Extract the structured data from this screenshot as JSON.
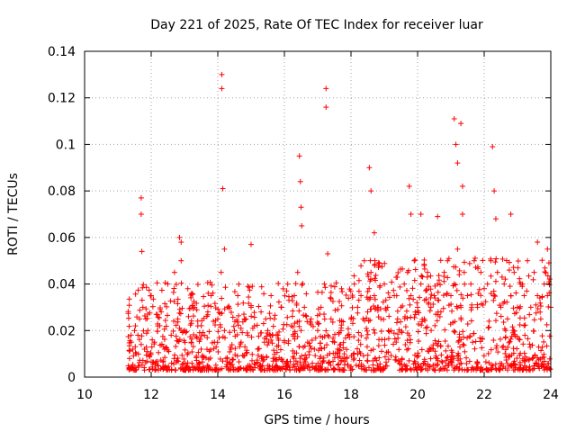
{
  "chart_data": {
    "type": "scatter",
    "title": "Day 221 of 2025, Rate Of TEC Index for receiver luar",
    "xlabel": "GPS time / hours",
    "ylabel": "ROTI / TECUs",
    "xlim": [
      10,
      24
    ],
    "ylim": [
      0,
      0.14
    ],
    "x_ticks": [
      10,
      12,
      14,
      16,
      18,
      20,
      22,
      24
    ],
    "x_tick_labels": [
      "10",
      "12",
      "14",
      "16",
      "18",
      "20",
      "22",
      "24"
    ],
    "y_ticks": [
      0,
      0.02,
      0.04,
      0.06,
      0.08,
      0.1,
      0.12,
      0.14
    ],
    "y_tick_labels": [
      "0",
      "0.02",
      "0.04",
      "0.06",
      "0.08",
      "0.1",
      "0.12",
      "0.14"
    ],
    "grid": true,
    "marker": "plus",
    "color": "#ff0000",
    "series": [
      {
        "name": "ROTI",
        "x": [
          11.35,
          11.4,
          11.45,
          11.5,
          11.55,
          11.6,
          11.65,
          11.7,
          11.75,
          11.8,
          11.9,
          12.0,
          12.1,
          12.2,
          12.3,
          12.4,
          12.5,
          12.6,
          12.7,
          12.8,
          12.9,
          13.0,
          13.1,
          13.2,
          13.3,
          13.4,
          13.5,
          13.6,
          13.7,
          13.8,
          13.9,
          14.0,
          14.1,
          14.2,
          14.3,
          14.4,
          14.5,
          14.6,
          14.7,
          14.8,
          14.9,
          15.0,
          15.1,
          15.2,
          15.3,
          15.4,
          15.5,
          15.6,
          15.7,
          15.8,
          15.9,
          16.0,
          16.1,
          16.2,
          16.3,
          16.4,
          16.5,
          16.6,
          16.7,
          16.8,
          16.9,
          17.0,
          17.1,
          17.2,
          17.3,
          17.4,
          17.5,
          17.6,
          17.7,
          17.8,
          17.9,
          18.0,
          18.1,
          18.2,
          18.3,
          18.4,
          18.5,
          18.6,
          18.7,
          18.8,
          18.9,
          19.0,
          19.1,
          19.2,
          19.3,
          19.4,
          19.5,
          19.6,
          19.7,
          19.8,
          19.9,
          20.0,
          20.1,
          20.2,
          20.3,
          20.4,
          20.5,
          20.6,
          20.7,
          20.8,
          20.9,
          21.0,
          21.1,
          21.2,
          21.3,
          21.4,
          21.5,
          21.6,
          21.7,
          21.8,
          21.9,
          22.0,
          22.1,
          22.2,
          22.3,
          22.4,
          22.5,
          22.6,
          22.7,
          22.8,
          22.9,
          23.0,
          23.1,
          23.2,
          23.3,
          23.4,
          23.5,
          23.6,
          23.7,
          23.8,
          23.9,
          24.0,
          11.7,
          11.7,
          11.72,
          12.85,
          12.9,
          14.12,
          14.12,
          14.15,
          14.2,
          15.0,
          16.45,
          16.48,
          16.5,
          16.52,
          17.25,
          17.25,
          17.3,
          18.55,
          18.6,
          18.7,
          19.75,
          19.8,
          20.1,
          20.6,
          21.1,
          21.15,
          21.2,
          21.3,
          21.35,
          21.35,
          22.25,
          22.3,
          22.35,
          22.8,
          23.6,
          23.9
        ],
        "y": [
          0.008,
          0.015,
          0.012,
          0.02,
          0.01,
          0.018,
          0.025,
          0.014,
          0.03,
          0.012,
          0.02,
          0.035,
          0.015,
          0.022,
          0.028,
          0.012,
          0.04,
          0.018,
          0.045,
          0.025,
          0.05,
          0.02,
          0.038,
          0.015,
          0.03,
          0.022,
          0.012,
          0.018,
          0.028,
          0.035,
          0.015,
          0.025,
          0.045,
          0.02,
          0.03,
          0.012,
          0.02,
          0.035,
          0.015,
          0.025,
          0.018,
          0.03,
          0.022,
          0.012,
          0.028,
          0.015,
          0.02,
          0.035,
          0.025,
          0.018,
          0.03,
          0.015,
          0.04,
          0.022,
          0.035,
          0.045,
          0.02,
          0.03,
          0.015,
          0.025,
          0.012,
          0.02,
          0.03,
          0.04,
          0.018,
          0.025,
          0.015,
          0.012,
          0.02,
          0.01,
          0.018,
          0.025,
          0.04,
          0.03,
          0.035,
          0.05,
          0.028,
          0.045,
          0.035,
          0.03,
          0.025,
          0.04,
          0.03,
          0.02,
          0.035,
          0.025,
          0.03,
          0.04,
          0.045,
          0.035,
          0.05,
          0.03,
          0.04,
          0.025,
          0.045,
          0.03,
          0.035,
          0.04,
          0.028,
          0.045,
          0.05,
          0.035,
          0.04,
          0.055,
          0.03,
          0.045,
          0.035,
          0.04,
          0.05,
          0.03,
          0.045,
          0.038,
          0.04,
          0.05,
          0.035,
          0.045,
          0.03,
          0.04,
          0.025,
          0.035,
          0.045,
          0.03,
          0.04,
          0.035,
          0.05,
          0.03,
          0.045,
          0.035,
          0.025,
          0.04,
          0.035,
          0.03,
          0.077,
          0.07,
          0.054,
          0.06,
          0.058,
          0.13,
          0.124,
          0.081,
          0.055,
          0.057,
          0.095,
          0.084,
          0.073,
          0.065,
          0.124,
          0.116,
          0.053,
          0.09,
          0.08,
          0.062,
          0.082,
          0.07,
          0.07,
          0.069,
          0.111,
          0.1,
          0.092,
          0.109,
          0.082,
          0.07,
          0.099,
          0.08,
          0.068,
          0.07,
          0.058,
          0.055
        ]
      }
    ],
    "noise_band": {
      "x_start": 11.3,
      "x_end": 24.0,
      "typical_y_range": [
        0.003,
        0.045
      ]
    }
  }
}
